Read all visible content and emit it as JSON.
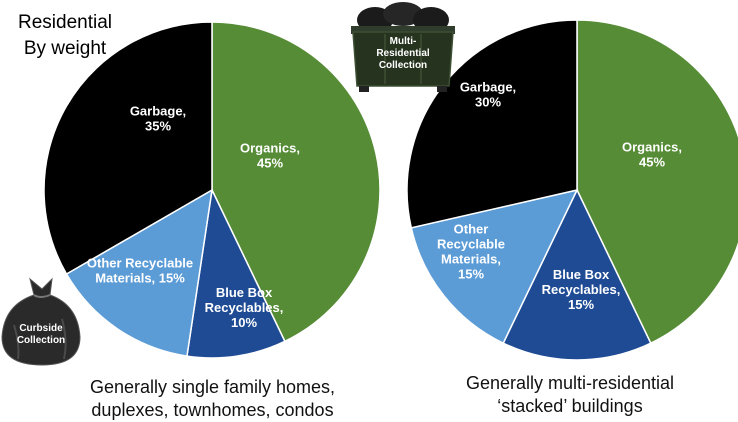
{
  "header": {
    "title_lines": [
      "Residential",
      "By weight"
    ]
  },
  "chart_data": [
    {
      "type": "pie",
      "slices": [
        {
          "label_lines": [
            "Organics,",
            "45%"
          ],
          "value": 45,
          "color": "#568c36"
        },
        {
          "label_lines": [
            "Blue Box",
            "Recyclables,",
            "10%"
          ],
          "value": 10,
          "color": "#1e4b94"
        },
        {
          "label_lines": [
            "Other Recyclable",
            "Materials, 15%"
          ],
          "value": 15,
          "color": "#5b9bd6"
        },
        {
          "label_lines": [
            "Garbage,",
            "35%"
          ],
          "value": 35,
          "color": "#000000"
        }
      ],
      "caption_lines": [
        "Generally single family homes,",
        "duplexes, townhomes, condos"
      ],
      "icon": {
        "name": "garbage-bag-icon",
        "label_lines": [
          "Curbside",
          "Collection"
        ]
      }
    },
    {
      "type": "pie",
      "slices": [
        {
          "label_lines": [
            "Organics,",
            "45%"
          ],
          "value": 45,
          "color": "#568c36"
        },
        {
          "label_lines": [
            "Blue Box",
            "Recyclables,",
            "15%"
          ],
          "value": 15,
          "color": "#1e4b94"
        },
        {
          "label_lines": [
            "Other",
            "Recyclable",
            "Materials,",
            "15%"
          ],
          "value": 15,
          "color": "#5b9bd6"
        },
        {
          "label_lines": [
            "Garbage,",
            "30%"
          ],
          "value": 30,
          "color": "#000000"
        }
      ],
      "caption_lines": [
        "Generally multi-residential",
        "‘stacked’ buildings"
      ],
      "icon": {
        "name": "dumpster-icon",
        "label_lines": [
          "Multi-",
          "Residential",
          "Collection"
        ]
      }
    }
  ]
}
